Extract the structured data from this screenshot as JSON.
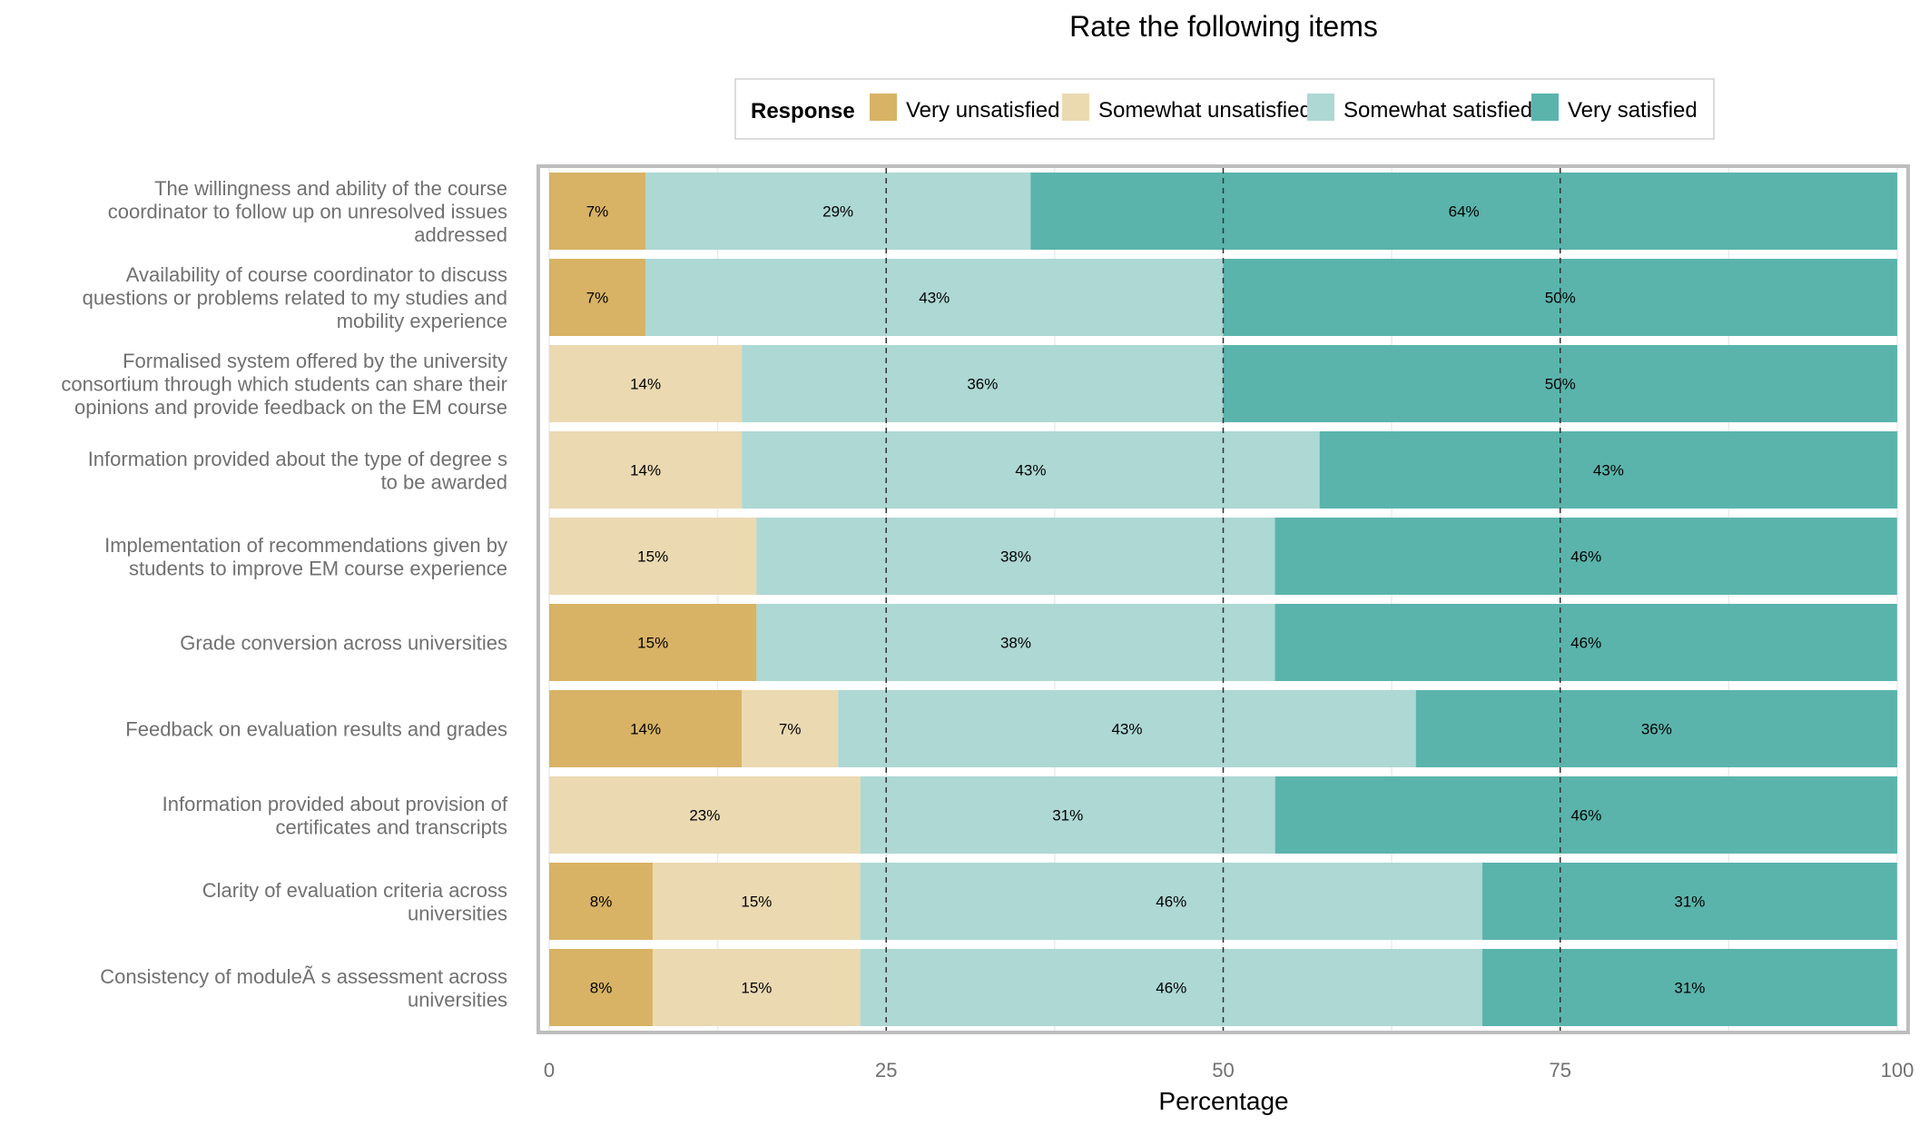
{
  "chart_data": {
    "type": "bar",
    "orientation": "horizontal",
    "stacked": true,
    "title": "Rate the following items",
    "xlabel": "Percentage",
    "xlim": [
      0,
      100
    ],
    "xticks": [
      "0",
      "25",
      "50",
      "75",
      "100"
    ],
    "legend": {
      "title": "Response",
      "position": "top"
    },
    "categories": [
      "The willingness and ability of the course coordinator to follow up on unresolved issues addressed",
      "Availability of course coordinator to discuss questions or problems related to my studies and mobility experience",
      "Formalised system offered by the university consortium through which students can share their opinions and provide feedback on the EM course",
      "Information provided about the type of degree s to be awarded",
      "Implementation of recommendations given by students to improve EM course experience",
      "Grade conversion across universities",
      "Feedback on evaluation results and grades",
      "Information provided about provision of certificates and transcripts",
      "Clarity of evaluation criteria across universities",
      "Consistency of moduleÃ s assessment across universities"
    ],
    "category_lines": [
      [
        "The willingness and ability of the course",
        "coordinator to follow up on unresolved issues",
        "addressed"
      ],
      [
        "Availability of course coordinator to discuss",
        "questions or problems related to my studies and",
        "mobility experience"
      ],
      [
        "Formalised system offered by the university",
        "consortium through which students can share their",
        "opinions and provide feedback on the EM course"
      ],
      [
        "Information provided about the type of degree s",
        "to be awarded"
      ],
      [
        "Implementation of recommendations given by",
        "students to improve EM course experience"
      ],
      [
        "Grade conversion across universities"
      ],
      [
        "Feedback on evaluation results and grades"
      ],
      [
        "Information provided about provision of",
        "certificates and transcripts"
      ],
      [
        "Clarity of evaluation criteria across",
        "universities"
      ],
      [
        "Consistency of moduleÃ s assessment across",
        "universities"
      ]
    ],
    "series": [
      {
        "name": "Very unsatisfied",
        "color": "#D8B365",
        "values": [
          7.14,
          7.14,
          0,
          0,
          0,
          15.38,
          14.29,
          0,
          7.69,
          7.69
        ],
        "labels": [
          "7%",
          "7%",
          "",
          "",
          "",
          "15%",
          "14%",
          "",
          "8%",
          "8%"
        ]
      },
      {
        "name": "Somewhat unsatisfied",
        "color": "#EBD9B2",
        "values": [
          0,
          0,
          14.29,
          14.29,
          15.38,
          0,
          7.14,
          23.08,
          15.38,
          15.38
        ],
        "labels": [
          "",
          "",
          "14%",
          "14%",
          "15%",
          "",
          "7%",
          "23%",
          "15%",
          "15%"
        ]
      },
      {
        "name": "Somewhat satisfied",
        "color": "#ADD8D4",
        "values": [
          28.57,
          42.86,
          35.71,
          42.86,
          38.46,
          38.46,
          42.86,
          30.77,
          46.15,
          46.15
        ],
        "labels": [
          "29%",
          "43%",
          "36%",
          "43%",
          "38%",
          "38%",
          "43%",
          "31%",
          "46%",
          "46%"
        ]
      },
      {
        "name": "Very satisfied",
        "color": "#5AB4AC",
        "values": [
          64.29,
          50,
          50,
          42.86,
          46.15,
          46.15,
          35.71,
          46.15,
          30.77,
          30.77
        ],
        "labels": [
          "64%",
          "50%",
          "50%",
          "43%",
          "46%",
          "46%",
          "36%",
          "46%",
          "31%",
          "31%"
        ]
      }
    ],
    "reference_lines": [
      25,
      50,
      75
    ],
    "grid": true
  }
}
